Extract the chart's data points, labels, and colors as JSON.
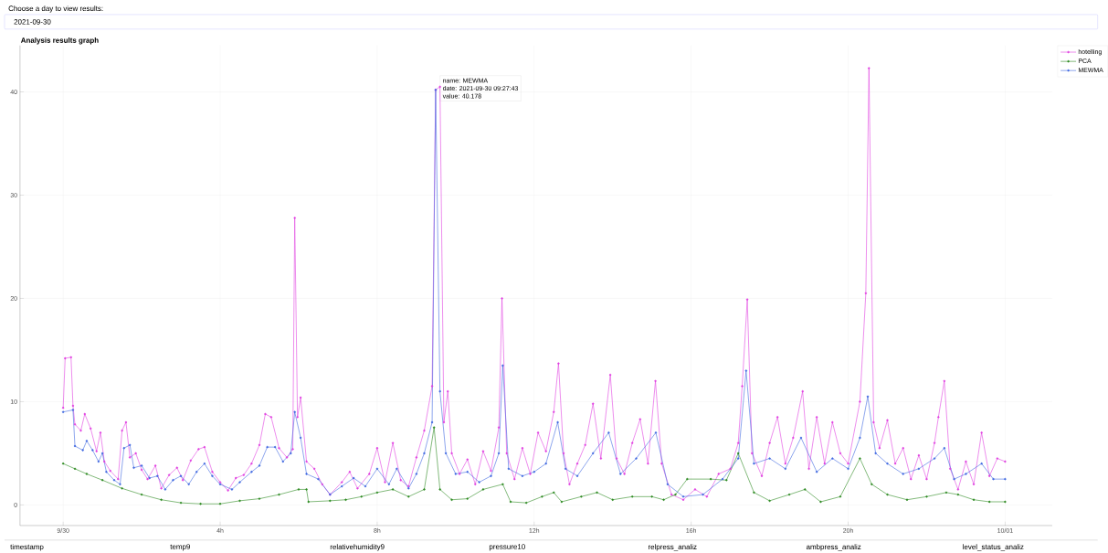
{
  "chart_data": {
    "type": "line",
    "title": "Analysis results graph",
    "annotations": [
      "Choose a day to view results:",
      "2021-09-30",
      "timestamp",
      "temp9",
      "relativehumidity9",
      "pressure10",
      "relpress_analiz",
      "ambpress_analiz",
      "level_status_analiz",
      "name: MEWMA",
      "date: 2021-09-30 09:27:43",
      "value: 40.178"
    ],
    "series": [
      {
        "name": "hotelling",
        "color": "#e040e0",
        "x": [
          0,
          0.05,
          0.2,
          0.25,
          0.3,
          0.45,
          0.55,
          0.7,
          0.85,
          0.95,
          1.05,
          1.2,
          1.4,
          1.5,
          1.6,
          1.7,
          1.85,
          2.0,
          2.15,
          2.35,
          2.5,
          2.7,
          2.9,
          3.05,
          3.25,
          3.45,
          3.6,
          3.8,
          4.0,
          4.2,
          4.4,
          4.6,
          4.8,
          5.0,
          5.15,
          5.3,
          5.5,
          5.7,
          5.85,
          5.9,
          5.97,
          6.05,
          6.2,
          6.4,
          6.6,
          6.8,
          7.1,
          7.3,
          7.5,
          7.8,
          8.0,
          8.2,
          8.4,
          8.6,
          8.8,
          9.0,
          9.2,
          9.4,
          9.49,
          9.6,
          9.7,
          9.8,
          9.9,
          10.1,
          10.3,
          10.5,
          10.7,
          10.9,
          11.1,
          11.18,
          11.3,
          11.5,
          11.7,
          11.9,
          12.1,
          12.3,
          12.5,
          12.62,
          12.75,
          12.9,
          13.1,
          13.3,
          13.5,
          13.7,
          13.94,
          14.1,
          14.3,
          14.5,
          14.7,
          14.9,
          15.09,
          15.25,
          15.5,
          15.8,
          16.1,
          16.4,
          16.7,
          17.0,
          17.2,
          17.3,
          17.43,
          17.55,
          17.8,
          18.0,
          18.2,
          18.4,
          18.6,
          18.84,
          19.0,
          19.2,
          19.4,
          19.6,
          19.8,
          20.0,
          20.3,
          20.45,
          20.53,
          20.65,
          20.8,
          21.0,
          21.2,
          21.4,
          21.6,
          21.8,
          22.0,
          22.2,
          22.3,
          22.45,
          22.6,
          22.8,
          23.0,
          23.2,
          23.4,
          23.6,
          23.8,
          24.0
        ],
        "values": [
          9.4,
          14.2,
          14.3,
          9.6,
          7.8,
          7.2,
          8.8,
          7.4,
          5.2,
          7.0,
          4.2,
          3.3,
          2.5,
          7.2,
          8.0,
          4.6,
          5.0,
          3.4,
          2.5,
          3.8,
          1.6,
          2.9,
          3.6,
          2.4,
          4.3,
          5.4,
          5.6,
          3.2,
          2.2,
          1.4,
          2.6,
          2.9,
          4.0,
          5.8,
          8.8,
          8.5,
          5.5,
          4.6,
          5.4,
          27.8,
          8.5,
          10.4,
          4.2,
          3.5,
          2.0,
          1.0,
          2.2,
          3.2,
          1.6,
          3.0,
          5.5,
          2.2,
          6.0,
          2.4,
          1.8,
          4.6,
          7.2,
          11.5,
          40.2,
          40.5,
          8.0,
          11.0,
          5.0,
          3.0,
          4.4,
          2.0,
          5.2,
          3.3,
          7.5,
          20.0,
          5.0,
          2.5,
          5.5,
          3.0,
          7.0,
          5.2,
          9.0,
          13.7,
          5.0,
          2.0,
          4.0,
          5.8,
          9.8,
          4.5,
          12.6,
          4.5,
          3.0,
          6.0,
          8.3,
          4.0,
          12.0,
          4.0,
          1.0,
          0.5,
          1.5,
          0.8,
          3.0,
          3.5,
          6.0,
          11.5,
          19.9,
          5.0,
          2.8,
          6.0,
          8.5,
          4.0,
          6.5,
          11.0,
          3.5,
          8.5,
          4.0,
          8.0,
          5.0,
          4.0,
          10.0,
          20.5,
          42.3,
          8.0,
          5.5,
          8.2,
          4.0,
          5.5,
          2.5,
          4.8,
          2.5,
          6.0,
          8.5,
          12.0,
          3.5,
          1.5,
          4.2,
          2.0,
          7.0,
          2.8,
          4.5,
          4.2
        ]
      },
      {
        "name": "PCA",
        "color": "#2e8b22",
        "x": [
          0,
          0.3,
          0.6,
          1.0,
          1.5,
          2.0,
          2.5,
          3.0,
          3.5,
          4.0,
          4.5,
          5.0,
          5.5,
          6.0,
          6.2,
          6.25,
          6.8,
          7.2,
          7.6,
          8.0,
          8.4,
          8.8,
          9.2,
          9.45,
          9.6,
          9.9,
          10.3,
          10.7,
          11.2,
          11.4,
          11.8,
          12.2,
          12.5,
          12.7,
          13.2,
          13.6,
          14.0,
          14.5,
          15.0,
          15.3,
          15.6,
          15.9,
          16.5,
          16.9,
          17.2,
          17.6,
          18.0,
          18.5,
          18.9,
          19.3,
          19.8,
          20.3,
          20.6,
          21.0,
          21.5,
          22.0,
          22.5,
          22.8,
          23.2,
          23.6,
          24.0
        ],
        "values": [
          4.0,
          3.5,
          3.0,
          2.4,
          1.6,
          1.0,
          0.5,
          0.2,
          0.1,
          0.1,
          0.4,
          0.6,
          1.0,
          1.5,
          1.5,
          0.3,
          0.4,
          0.5,
          0.8,
          1.2,
          1.5,
          0.8,
          1.5,
          7.5,
          1.5,
          0.5,
          0.6,
          1.5,
          2.0,
          0.3,
          0.2,
          0.8,
          1.2,
          0.3,
          0.8,
          1.2,
          0.5,
          0.8,
          0.8,
          0.5,
          1.0,
          2.5,
          2.5,
          2.4,
          5.0,
          1.2,
          0.4,
          1.0,
          1.5,
          0.3,
          0.8,
          4.5,
          2.0,
          1.0,
          0.5,
          0.8,
          1.2,
          1.0,
          0.5,
          0.3,
          0.3
        ]
      },
      {
        "name": "MEWMA",
        "color": "#4169e1",
        "x": [
          0,
          0.25,
          0.3,
          0.5,
          0.6,
          0.75,
          0.9,
          1.0,
          1.1,
          1.3,
          1.45,
          1.55,
          1.7,
          1.8,
          2.0,
          2.2,
          2.4,
          2.6,
          2.8,
          3.0,
          3.2,
          3.4,
          3.6,
          3.8,
          4.0,
          4.3,
          4.5,
          4.8,
          5.0,
          5.2,
          5.4,
          5.6,
          5.8,
          5.9,
          6.05,
          6.2,
          6.5,
          6.8,
          7.1,
          7.4,
          7.7,
          8.0,
          8.3,
          8.5,
          8.8,
          9.0,
          9.2,
          9.4,
          9.49,
          9.6,
          9.75,
          10.0,
          10.3,
          10.6,
          10.9,
          11.1,
          11.2,
          11.35,
          11.7,
          12.0,
          12.3,
          12.6,
          12.8,
          13.1,
          13.5,
          13.9,
          14.2,
          14.6,
          15.1,
          15.4,
          15.8,
          16.3,
          16.8,
          17.2,
          17.4,
          17.6,
          18.0,
          18.4,
          18.8,
          19.2,
          19.6,
          20.0,
          20.3,
          20.5,
          20.7,
          21.0,
          21.4,
          21.8,
          22.2,
          22.45,
          22.7,
          23.0,
          23.4,
          23.7,
          24.0
        ],
        "values": [
          9.0,
          9.2,
          5.7,
          5.3,
          6.2,
          5.3,
          4.2,
          5.0,
          3.2,
          2.4,
          2.0,
          5.5,
          5.8,
          3.6,
          3.8,
          2.6,
          2.8,
          1.5,
          2.4,
          2.8,
          2.0,
          3.2,
          4.0,
          2.8,
          2.0,
          1.5,
          2.2,
          3.2,
          3.8,
          5.6,
          5.6,
          4.2,
          5.0,
          9.0,
          6.5,
          3.0,
          2.5,
          1.0,
          1.8,
          2.6,
          1.8,
          3.5,
          2.0,
          3.5,
          1.6,
          3.0,
          5.0,
          8.0,
          40.2,
          11.0,
          5.0,
          3.0,
          3.2,
          2.2,
          2.8,
          5.0,
          13.5,
          3.5,
          2.8,
          3.2,
          4.0,
          8.0,
          3.5,
          2.8,
          5.0,
          7.0,
          3.0,
          4.5,
          7.0,
          2.0,
          0.8,
          1.0,
          2.5,
          4.5,
          13.0,
          4.0,
          4.5,
          3.5,
          6.5,
          3.2,
          4.5,
          3.5,
          6.5,
          10.5,
          5.0,
          4.0,
          3.0,
          3.5,
          4.5,
          5.5,
          2.5,
          3.0,
          4.0,
          2.5,
          2.5
        ]
      }
    ],
    "xlim": [
      -1.1,
      25.2
    ],
    "xticks": [
      {
        "value": 0,
        "label": "9/30"
      },
      {
        "value": 4,
        "label": "4h"
      },
      {
        "value": 8,
        "label": "8h"
      },
      {
        "value": 12,
        "label": "12h"
      },
      {
        "value": 16,
        "label": "16h"
      },
      {
        "value": 20,
        "label": "20h"
      },
      {
        "value": 24,
        "label": "10/01"
      }
    ],
    "ylim": [
      -2,
      44.5
    ],
    "yticks": [
      0,
      10,
      20,
      30,
      40
    ],
    "grid": true,
    "legend": "top right",
    "marker": "circle",
    "line_style": "solid"
  }
}
